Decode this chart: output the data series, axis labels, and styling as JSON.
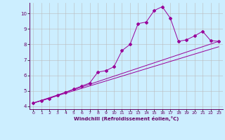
{
  "xlabel": "Windchill (Refroidissement éolien,°C)",
  "ylabel": "",
  "bg_color": "#cceeff",
  "line_color": "#990099",
  "grid_color": "#bbbbbb",
  "xlim": [
    -0.5,
    23.5
  ],
  "ylim": [
    3.8,
    10.7
  ],
  "yticks": [
    4,
    5,
    6,
    7,
    8,
    9,
    10
  ],
  "xticks": [
    0,
    1,
    2,
    3,
    4,
    5,
    6,
    7,
    8,
    9,
    10,
    11,
    12,
    13,
    14,
    15,
    16,
    17,
    18,
    19,
    20,
    21,
    22,
    23
  ],
  "series_main": {
    "x": [
      0,
      1,
      2,
      3,
      4,
      5,
      6,
      7,
      8,
      9,
      10,
      11,
      12,
      13,
      14,
      15,
      16,
      17,
      18,
      19,
      20,
      21,
      22,
      23
    ],
    "y": [
      4.2,
      4.35,
      4.5,
      4.7,
      4.9,
      5.1,
      5.3,
      5.5,
      6.2,
      6.3,
      6.55,
      7.6,
      8.0,
      9.35,
      9.45,
      10.2,
      10.45,
      9.7,
      8.2,
      8.3,
      8.55,
      8.85,
      8.25,
      8.2
    ]
  },
  "series_linear1": {
    "x": [
      0,
      23
    ],
    "y": [
      4.2,
      8.2
    ]
  },
  "series_linear2": {
    "x": [
      0,
      23
    ],
    "y": [
      4.2,
      7.85
    ]
  },
  "tick_color": "#660066",
  "label_color": "#660066",
  "tick_fontsize": 4.5,
  "xlabel_fontsize": 5.0
}
